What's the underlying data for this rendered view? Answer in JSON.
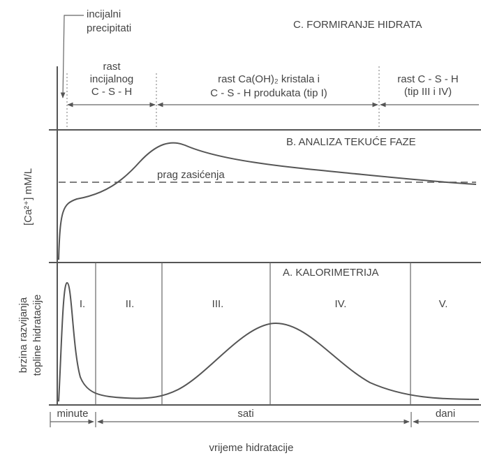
{
  "top_label": [
    "incijalni",
    "precipitati"
  ],
  "section_c": {
    "title": "C. FORMIRANJE HIDRATA",
    "phases": [
      {
        "lines": [
          "rast",
          "incijalnog",
          "C - S - H"
        ]
      },
      {
        "lines": [
          "rast Ca(OH)₂ kristala i",
          "C - S - H produkata (tip I)"
        ]
      },
      {
        "lines": [
          "rast C - S - H",
          "(tip III i IV)"
        ]
      }
    ]
  },
  "section_b": {
    "title": "B. ANALIZA TEKUĆE FAZE",
    "y_label": "[Ca²⁺] mM/L",
    "threshold_label": "prag zasićenja"
  },
  "section_a": {
    "title": "A. KALORIMETRIJA",
    "y_label": [
      "brzina razvijanja",
      "topline hidratacije"
    ],
    "stages": [
      "I.",
      "II.",
      "III.",
      "IV.",
      "V."
    ]
  },
  "time_scale": [
    "minute",
    "sati",
    "dani"
  ],
  "x_label": "vrijeme hidratacije"
}
